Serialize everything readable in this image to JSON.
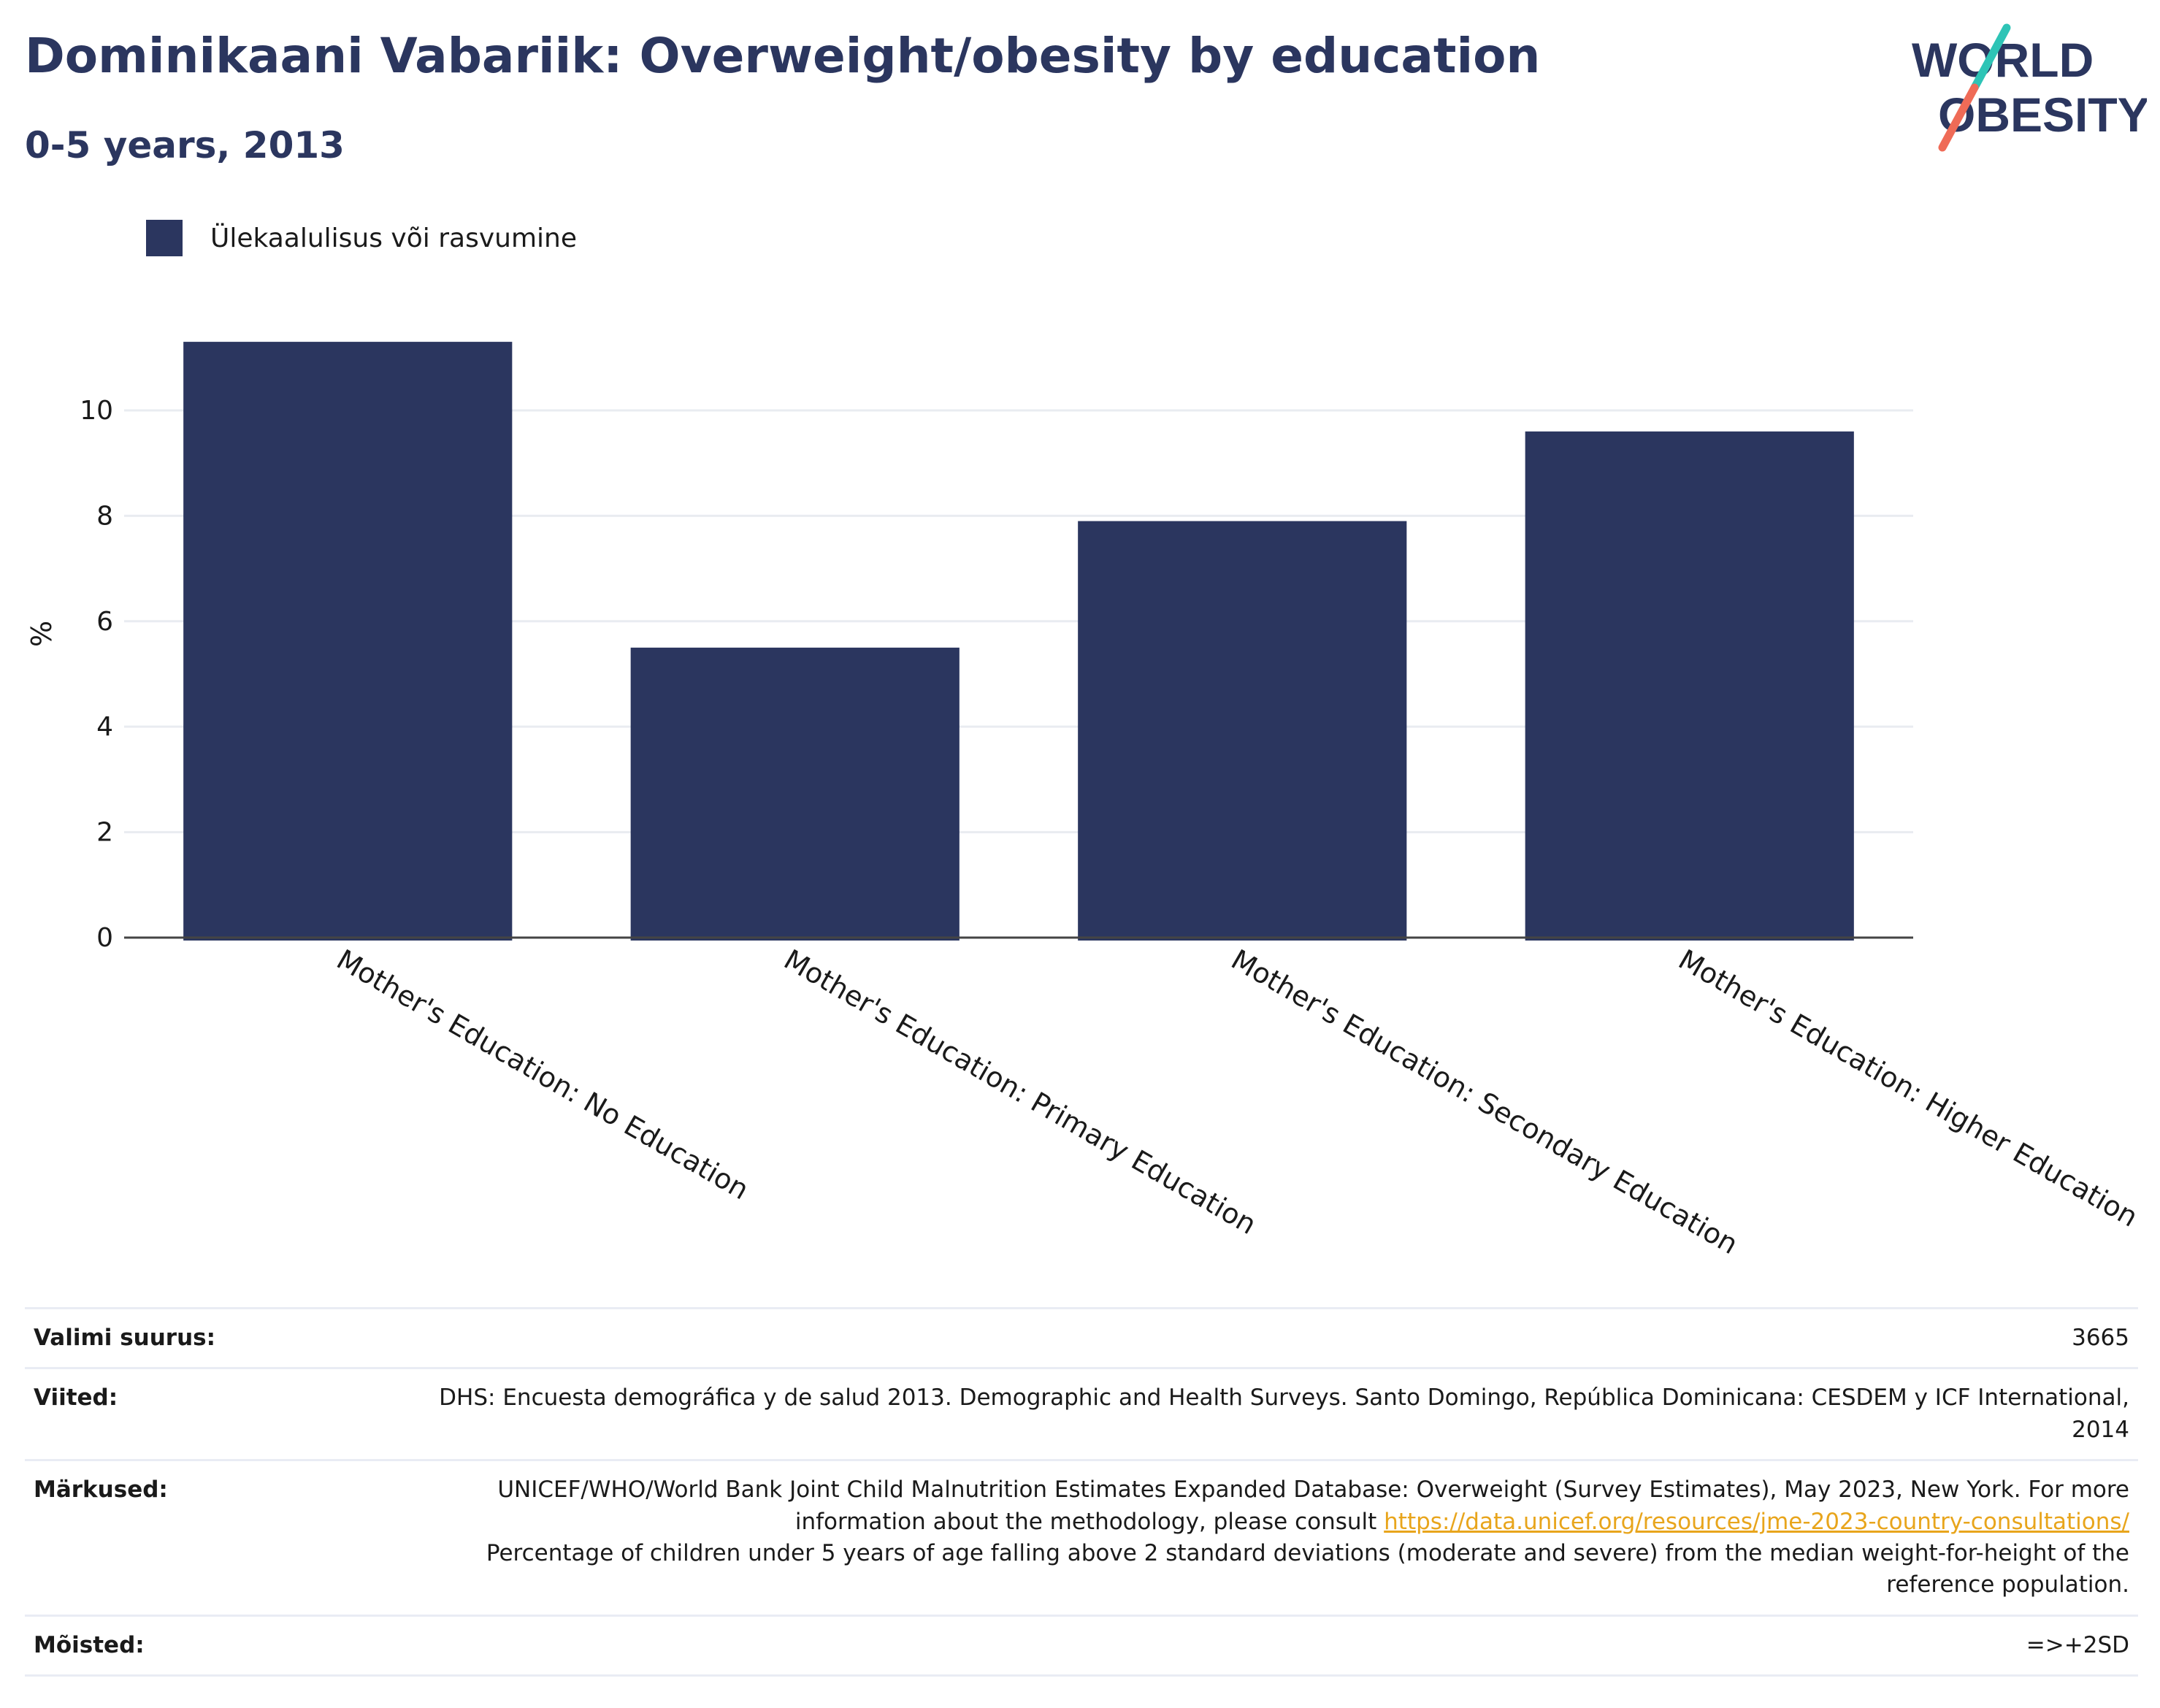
{
  "header": {
    "title": "Dominikaani Vabariik: Overweight/obesity by education",
    "subtitle": "0-5 years, 2013"
  },
  "logo": {
    "line1": "WORLD",
    "line2": "OBESITY",
    "accent_teal": "#2ec4b6",
    "accent_coral": "#ef6b57"
  },
  "legend": {
    "label": "Ülekaalulisus või rasvumine",
    "color": "#2b365f"
  },
  "chart_data": {
    "type": "bar",
    "categories": [
      "Mother's Education: No Education",
      "Mother's Education: Primary Education",
      "Mother's Education: Secondary Education",
      "Mother's Education: Higher Education"
    ],
    "series": [
      {
        "name": "Ülekaalulisus või rasvumine",
        "values": [
          11.3,
          5.5,
          7.9,
          9.6
        ],
        "color": "#2b365f"
      }
    ],
    "ylabel": "%",
    "ylim": [
      0,
      11.8
    ],
    "yticks": [
      0,
      2,
      4,
      6,
      8,
      10
    ],
    "grid": true,
    "legend_position": "top-left"
  },
  "meta": {
    "sample": {
      "label": "Valimi suurus:",
      "value": "3665"
    },
    "references": {
      "label": "Viited:",
      "value": "DHS: Encuesta demográfica y de salud 2013. Demographic and Health Surveys. Santo Domingo, República Dominicana: CESDEM y ICF International, 2014"
    },
    "notes": {
      "label": "Märkused:",
      "text_before": "UNICEF/WHO/World Bank Joint Child Malnutrition Estimates Expanded Database: Overweight (Survey Estimates), May 2023, New York. For more information about the methodology, please consult",
      "link": "https://data.unicef.org/resources/jme-2023-country-consultations/",
      "text_after": "Percentage of children under 5 years of age falling above 2 standard deviations (moderate and severe) from the median weight-for-height of the reference population."
    },
    "definitions": {
      "label": "Mõisted:",
      "value": "=>+2SD"
    }
  }
}
